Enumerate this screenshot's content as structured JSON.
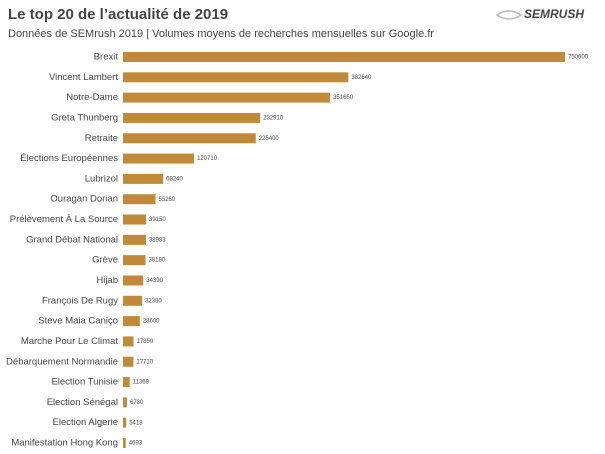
{
  "chart_data": {
    "type": "barh",
    "title": "Le top 20 de l’actualité de 2019",
    "subtitle": "Données de SEMrush 2019 | Volumes moyens de recherches mensuelles sur Google.fr",
    "brand": "SEMRUSH",
    "categories": [
      "Brexit",
      "Vincent Lambert",
      "Notre-Dame",
      "Greta Thunberg",
      "Retraite",
      "Élections Européennes",
      "Lubrizol",
      "Ouragan Dorian",
      "Prélèvement À La Source",
      "Grand Débat National",
      "Grève",
      "Hijab",
      "François De Rugy",
      "Steve Maia Caniço",
      "Marche Pour Le Climat",
      "Débarquement Normandie",
      "Election Tunisie",
      "Election Sénégal",
      "Election Algerie",
      "Manifestation Hong Kong"
    ],
    "values": [
      750600,
      382640,
      351650,
      232910,
      225400,
      120710,
      68240,
      55260,
      39150,
      38983,
      38180,
      34390,
      32380,
      28600,
      17850,
      17710,
      11369,
      6780,
      5418,
      4693
    ],
    "color": "#c08a3a"
  }
}
